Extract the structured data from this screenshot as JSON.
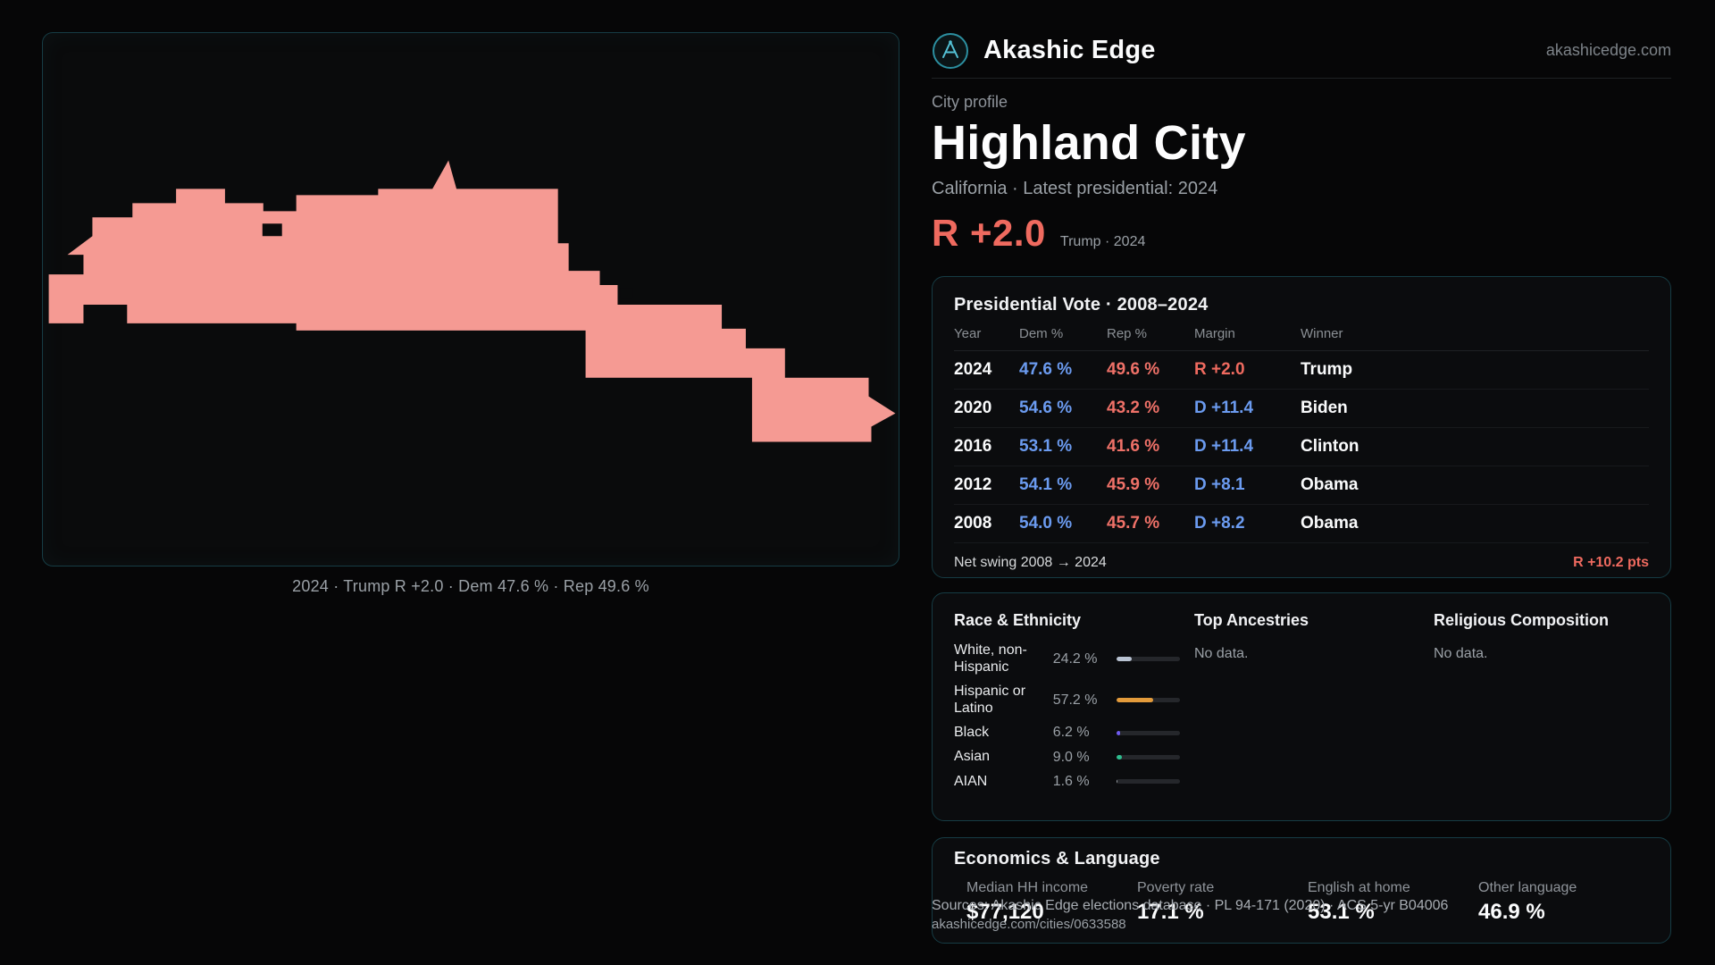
{
  "brand": {
    "name": "Akashic Edge",
    "domain": "akashicedge.com"
  },
  "map": {
    "caption": "2024 · Trump R +2.0 · Dem 47.6 % · Rep 49.6 %",
    "fill": "#f59a93"
  },
  "profile": {
    "kicker": "City profile",
    "title": "Highland City",
    "subtitle": "California · Latest presidential: 2024",
    "margin": "R +2.0",
    "margin_note": "Trump · 2024"
  },
  "presidential": {
    "title": "Presidential Vote · 2008–2024",
    "columns": [
      "Year",
      "Dem %",
      "Rep %",
      "Margin",
      "Winner"
    ],
    "rows": [
      {
        "year": "2024",
        "dem": "47.6 %",
        "rep": "49.6 %",
        "margin": "R +2.0",
        "party": "R",
        "winner": "Trump"
      },
      {
        "year": "2020",
        "dem": "54.6 %",
        "rep": "43.2 %",
        "margin": "D +11.4",
        "party": "D",
        "winner": "Biden"
      },
      {
        "year": "2016",
        "dem": "53.1 %",
        "rep": "41.6 %",
        "margin": "D +11.4",
        "party": "D",
        "winner": "Clinton"
      },
      {
        "year": "2012",
        "dem": "54.1 %",
        "rep": "45.9 %",
        "margin": "D +8.1",
        "party": "D",
        "winner": "Obama"
      },
      {
        "year": "2008",
        "dem": "54.0 %",
        "rep": "45.7 %",
        "margin": "D +8.2",
        "party": "D",
        "winner": "Obama"
      }
    ],
    "swing_label": "Net swing 2008 → 2024",
    "swing_value": "R +10.2 pts"
  },
  "demographics": {
    "race_title": "Race & Ethnicity",
    "ancestries_title": "Top Ancestries",
    "religion_title": "Religious Composition",
    "no_data": "No data.",
    "race_rows": [
      {
        "label": "White, non-Hispanic",
        "value": "24.2 %",
        "pct": 24.2,
        "color": "#b9c3d2"
      },
      {
        "label": "Hispanic or Latino",
        "value": "57.2 %",
        "pct": 57.2,
        "color": "#e39b3b"
      },
      {
        "label": "Black",
        "value": "6.2 %",
        "pct": 6.2,
        "color": "#6f5bf0"
      },
      {
        "label": "Asian",
        "value": "9.0 %",
        "pct": 9.0,
        "color": "#2ebd8e"
      },
      {
        "label": "AIAN",
        "value": "1.6 %",
        "pct": 1.6,
        "color": "#9aa0a6"
      }
    ]
  },
  "economics": {
    "title": "Economics & Language",
    "stats": [
      {
        "label": "Median HH income",
        "value": "$77,120"
      },
      {
        "label": "Poverty rate",
        "value": "17.1 %"
      },
      {
        "label": "English at home",
        "value": "53.1 %"
      },
      {
        "label": "Other language",
        "value": "46.9 %"
      }
    ]
  },
  "footer": {
    "sources": "Sources: Akashic Edge elections database · PL 94-171 (2020) · ACS 5-yr B04006",
    "permalink": "akashicedge.com/cities/0633588"
  },
  "colors": {
    "dem": "#6b9bf0",
    "rep": "#ef7168",
    "red_accent": "#ef6a5f"
  }
}
